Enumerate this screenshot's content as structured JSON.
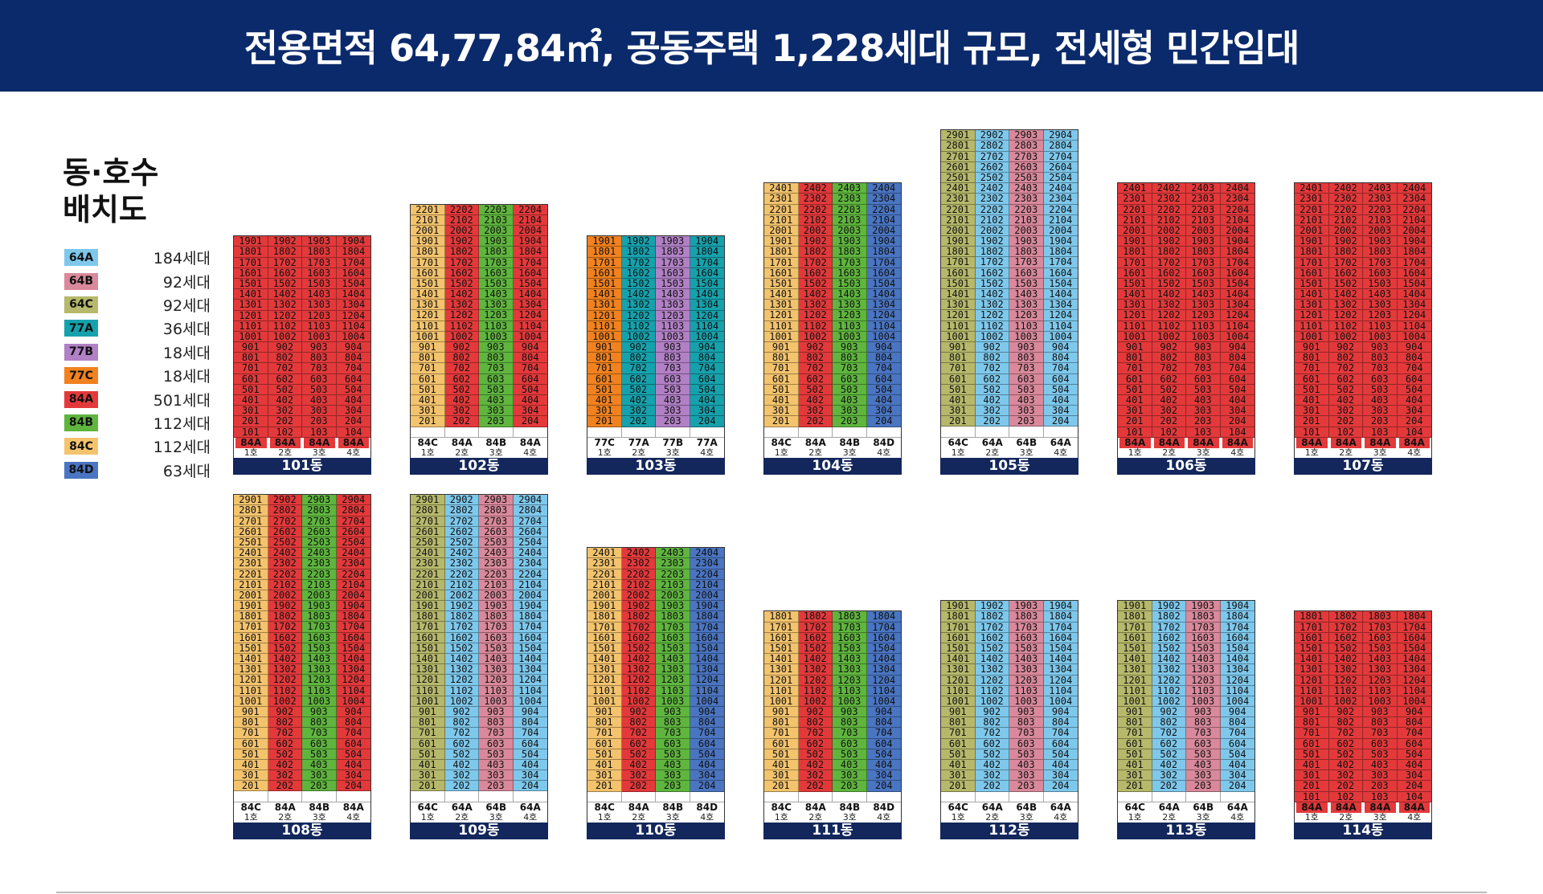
{
  "header": {
    "title": "전용면적 64,77,84㎡, 공동주택 1,228세대 규모, 전세형 민간임대"
  },
  "legend": {
    "title_line1": "동·호수",
    "title_line2": "배치도",
    "items": [
      {
        "type": "64A",
        "count": "184세대",
        "color": "#7ec8ec"
      },
      {
        "type": "64B",
        "count": "92세대",
        "color": "#d9899b"
      },
      {
        "type": "64C",
        "count": "92세대",
        "color": "#b6b86b"
      },
      {
        "type": "77A",
        "count": "36세대",
        "color": "#16a2ad"
      },
      {
        "type": "77B",
        "count": "18세대",
        "color": "#b180c5"
      },
      {
        "type": "77C",
        "count": "18세대",
        "color": "#f1821f"
      },
      {
        "type": "84A",
        "count": "501세대",
        "color": "#e4393b"
      },
      {
        "type": "84B",
        "count": "112세대",
        "color": "#5fb53e"
      },
      {
        "type": "84C",
        "count": "112세대",
        "color": "#f3c36d"
      },
      {
        "type": "84D",
        "count": "63세대",
        "color": "#4a75c2"
      }
    ]
  },
  "line_labels": [
    "1호",
    "2호",
    "3호",
    "4호"
  ],
  "buildings": [
    {
      "name": "101동",
      "floors": 19,
      "types": [
        "84A",
        "84A",
        "84A",
        "84A"
      ],
      "lowest": [
        1,
        1,
        1,
        1
      ]
    },
    {
      "name": "102동",
      "floors": 22,
      "types": [
        "84C",
        "84A",
        "84B",
        "84A"
      ],
      "lowest": [
        2,
        2,
        2,
        2
      ]
    },
    {
      "name": "103동",
      "floors": 19,
      "types": [
        "77C",
        "77A",
        "77B",
        "77A"
      ],
      "lowest": [
        2,
        2,
        2,
        2
      ]
    },
    {
      "name": "104동",
      "floors": 24,
      "types": [
        "84C",
        "84A",
        "84B",
        "84D"
      ],
      "lowest": [
        2,
        2,
        2,
        2
      ]
    },
    {
      "name": "105동",
      "floors": 29,
      "types": [
        "64C",
        "64A",
        "64B",
        "64A"
      ],
      "lowest": [
        2,
        2,
        2,
        2
      ]
    },
    {
      "name": "106동",
      "floors": 24,
      "types": [
        "84A",
        "84A",
        "84A",
        "84A"
      ],
      "lowest": [
        1,
        1,
        1,
        1
      ]
    },
    {
      "name": "107동",
      "floors": 24,
      "types": [
        "84A",
        "84A",
        "84A",
        "84A"
      ],
      "lowest": [
        1,
        1,
        1,
        1
      ]
    },
    {
      "name": "108동",
      "floors": 29,
      "types": [
        "84C",
        "84A",
        "84B",
        "84A"
      ],
      "lowest": [
        2,
        2,
        2,
        2
      ]
    },
    {
      "name": "109동",
      "floors": 29,
      "types": [
        "64C",
        "64A",
        "64B",
        "64A"
      ],
      "lowest": [
        2,
        2,
        2,
        2
      ]
    },
    {
      "name": "110동",
      "floors": 24,
      "types": [
        "84C",
        "84A",
        "84B",
        "84D"
      ],
      "lowest": [
        2,
        2,
        2,
        2
      ]
    },
    {
      "name": "111동",
      "floors": 18,
      "types": [
        "84C",
        "84A",
        "84B",
        "84D"
      ],
      "lowest": [
        2,
        2,
        2,
        2
      ]
    },
    {
      "name": "112동",
      "floors": 19,
      "types": [
        "64C",
        "64A",
        "64B",
        "64A"
      ],
      "lowest": [
        2,
        2,
        2,
        2
      ]
    },
    {
      "name": "113동",
      "floors": 19,
      "types": [
        "64C",
        "64A",
        "64B",
        "64A"
      ],
      "lowest": [
        2,
        2,
        2,
        2
      ]
    },
    {
      "name": "114동",
      "floors": 18,
      "types": [
        "84A",
        "84A",
        "84A",
        "84A"
      ],
      "lowest": [
        1,
        1,
        1,
        1
      ]
    }
  ]
}
